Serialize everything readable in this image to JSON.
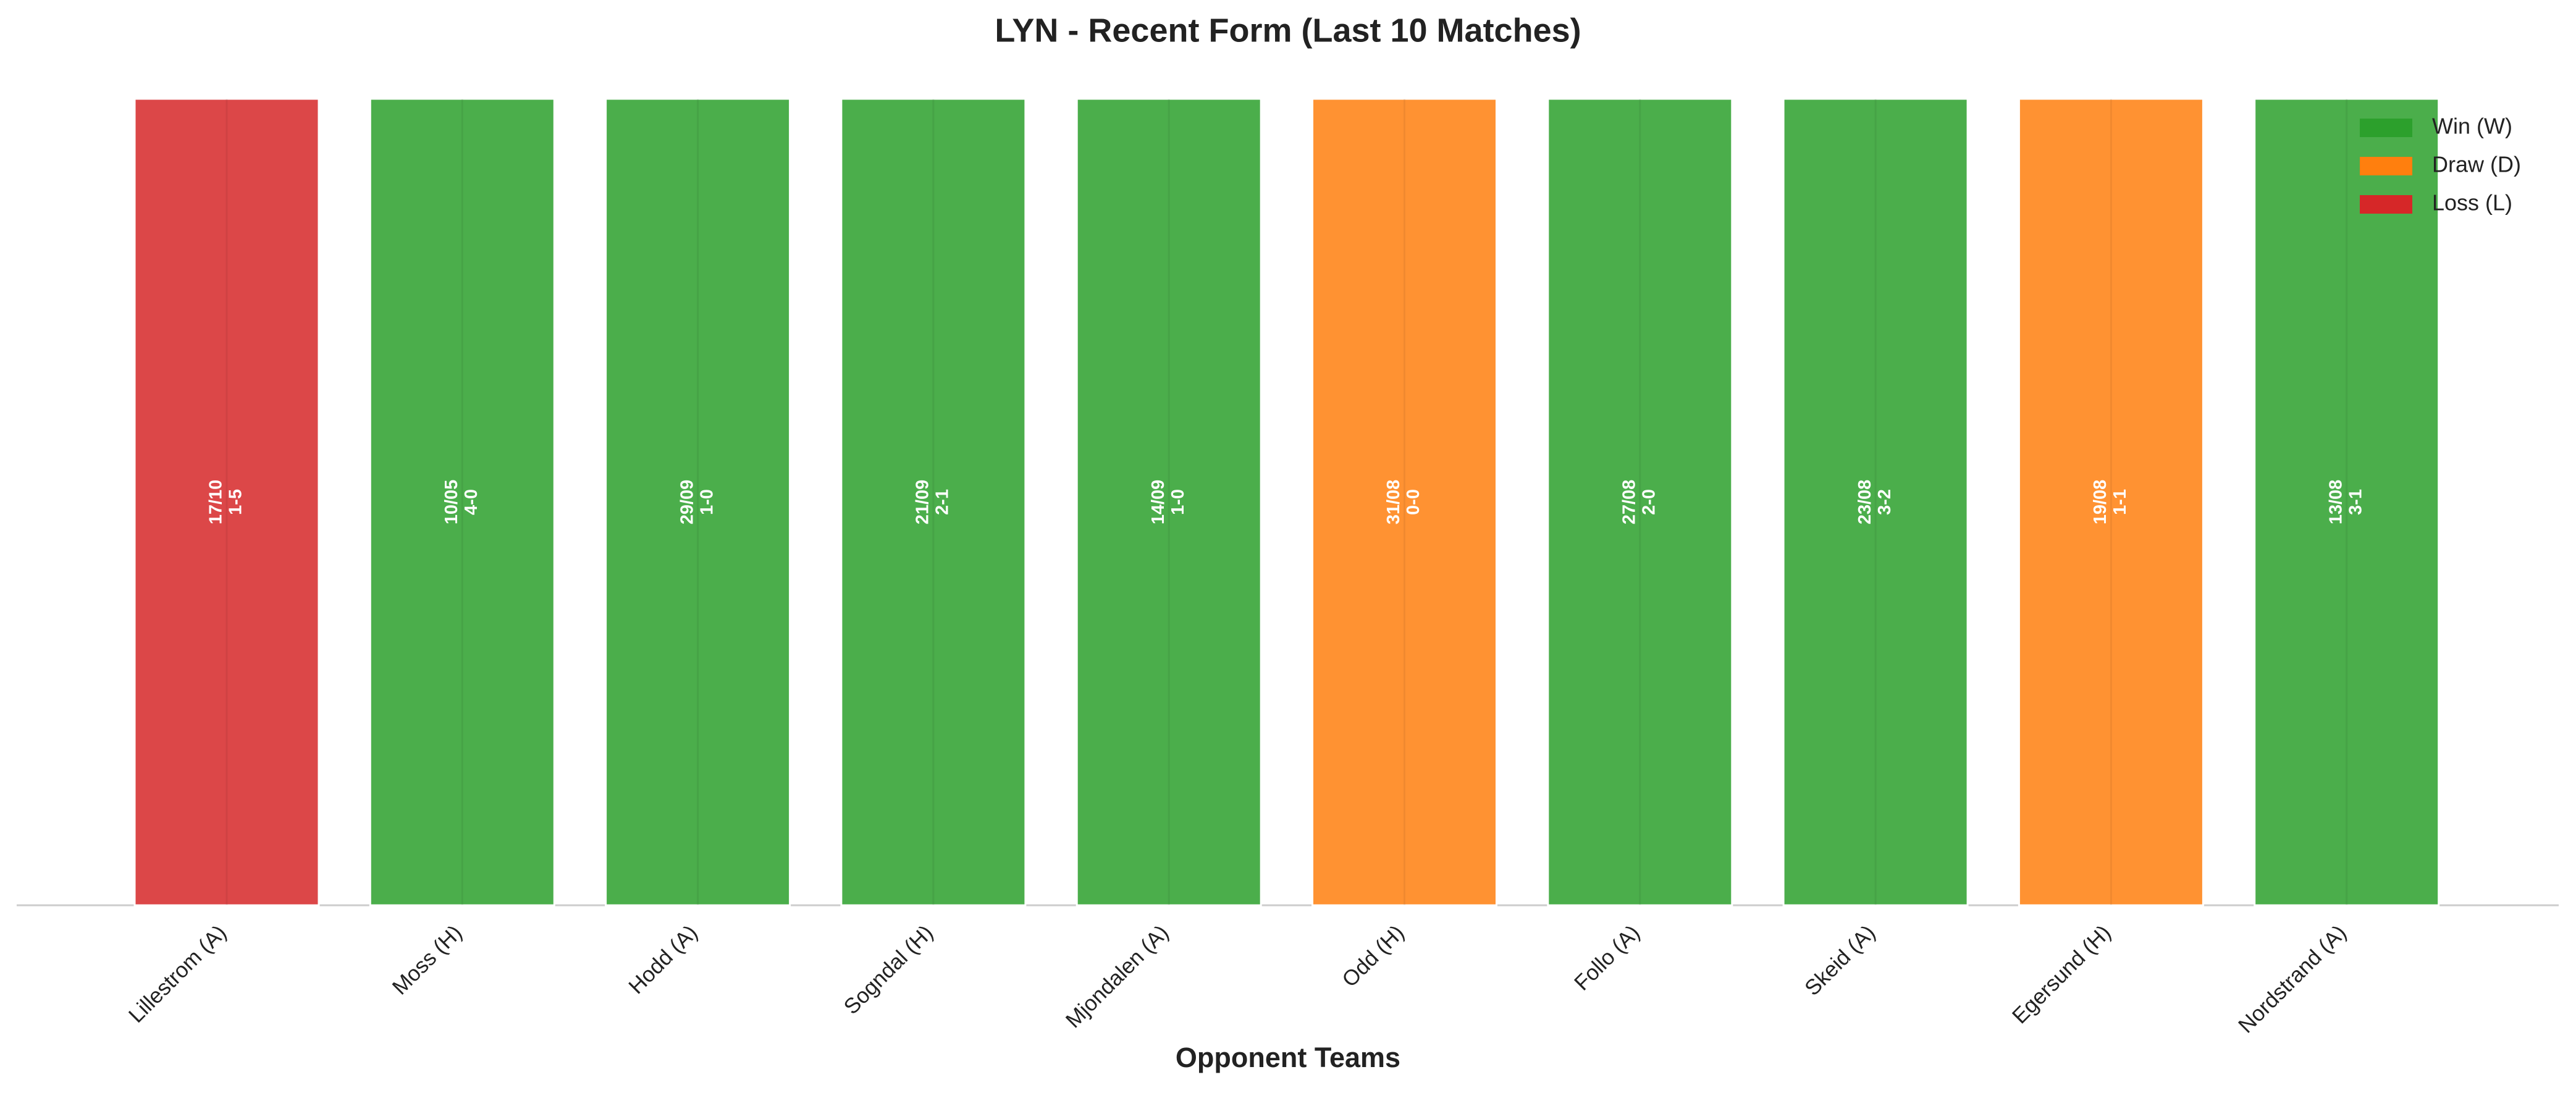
{
  "chart_data": {
    "type": "bar",
    "title": "LYN - Recent Form (Last 10 Matches)",
    "x_label": "Opponent Teams",
    "categories": [
      "Lillestrom (A)",
      "Moss (H)",
      "Hodd (A)",
      "Sogndal (H)",
      "Mjondalen (A)",
      "Odd (H)",
      "Follo (A)",
      "Skeid (A)",
      "Egersund (H)",
      "Nordstrand (A)"
    ],
    "values": [
      1,
      1,
      1,
      1,
      1,
      1,
      1,
      1,
      1,
      1
    ],
    "dates": [
      "17/10",
      "10/05",
      "29/09",
      "21/09",
      "14/09",
      "31/08",
      "27/08",
      "23/08",
      "19/08",
      "13/08"
    ],
    "scores": [
      "1-5",
      "4-0",
      "1-0",
      "2-1",
      "1-0",
      "0-0",
      "2-0",
      "3-2",
      "1-1",
      "3-1"
    ],
    "colors": [
      "#d62728",
      "#2ca02c",
      "#2ca02c",
      "#2ca02c",
      "#2ca02c",
      "#ff7f0e",
      "#2ca02c",
      "#2ca02c",
      "#ff7f0e",
      "#2ca02c"
    ],
    "ylim": [
      0,
      1
    ],
    "legend": [
      {
        "name": "Win (W)",
        "color": "#2ca02c"
      },
      {
        "name": "Draw (D)",
        "color": "#ff7f0e"
      },
      {
        "name": "Loss (L)",
        "color": "#d62728"
      }
    ],
    "legend_position": "upper right"
  }
}
